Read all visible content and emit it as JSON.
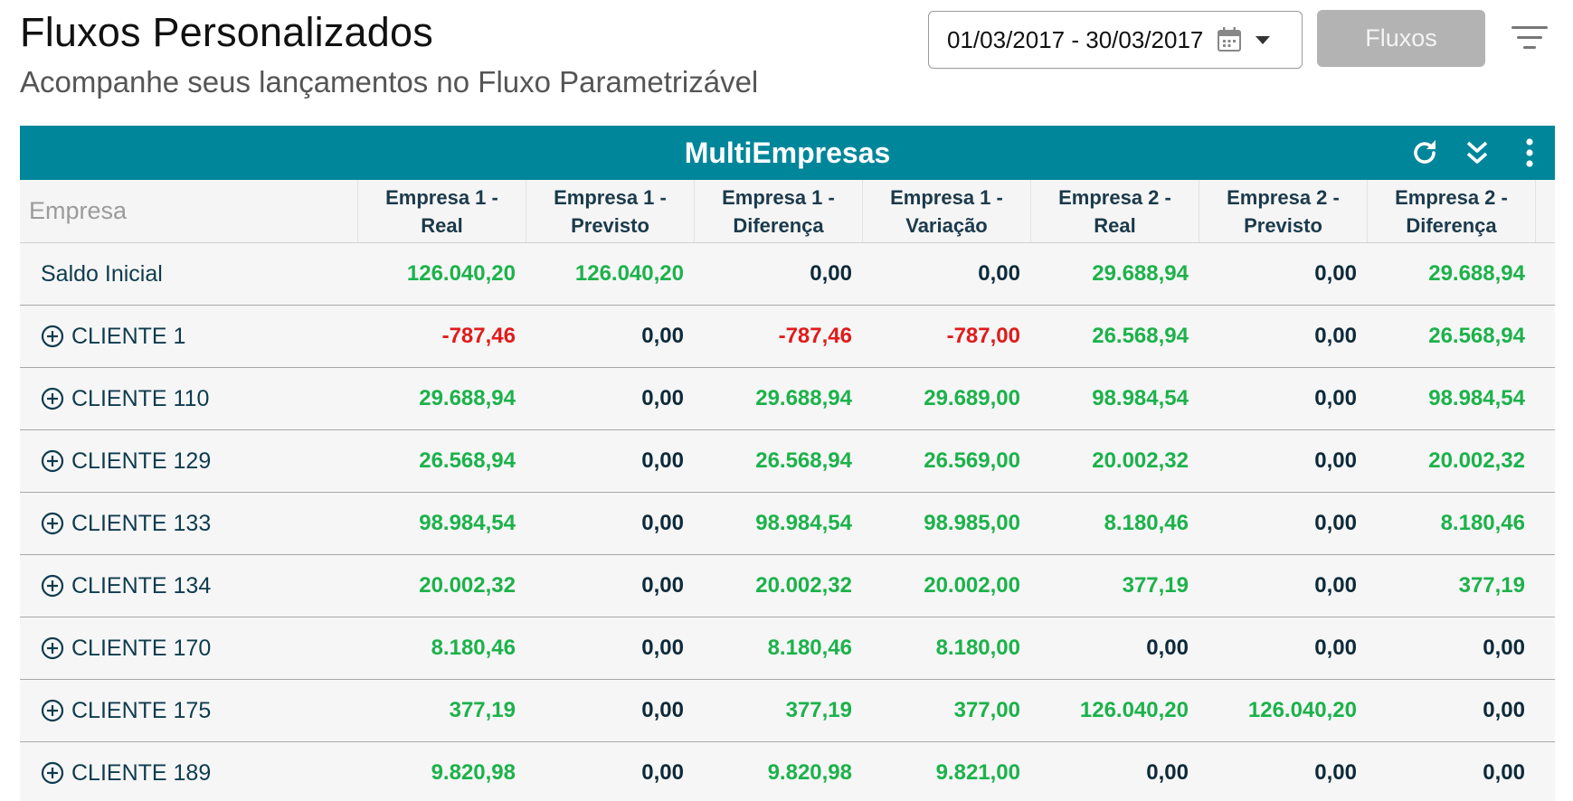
{
  "header": {
    "title": "Fluxos Personalizados",
    "subtitle": "Acompanhe seus lançamentos no Fluxo Parametrizável",
    "date_range": "01/03/2017 - 30/03/2017",
    "fluxos_button": "Fluxos"
  },
  "panel": {
    "title": "MultiEmpresas",
    "actions": [
      "refresh-icon",
      "double-chevron-down-icon",
      "more-vertical-icon"
    ],
    "accent_color": "#00869a"
  },
  "table": {
    "columns": [
      "Empresa",
      "Empresa 1 - Real",
      "Empresa 1 - Previsto",
      "Empresa 1 - Diferença",
      "Empresa 1 - Variação",
      "Empresa 2 - Real",
      "Empresa 2 - Previsto",
      "Empresa 2 - Diferença"
    ],
    "rows": [
      {
        "label": "Saldo Inicial",
        "expandable": false,
        "values": [
          "126.040,20",
          "126.040,20",
          "0,00",
          "0,00",
          "29.688,94",
          "0,00",
          "29.688,94"
        ]
      },
      {
        "label": "CLIENTE 1",
        "expandable": true,
        "values": [
          "-787,46",
          "0,00",
          "-787,46",
          "-787,00",
          "26.568,94",
          "0,00",
          "26.568,94"
        ]
      },
      {
        "label": "CLIENTE 110",
        "expandable": true,
        "values": [
          "29.688,94",
          "0,00",
          "29.688,94",
          "29.689,00",
          "98.984,54",
          "0,00",
          "98.984,54"
        ]
      },
      {
        "label": "CLIENTE 129",
        "expandable": true,
        "values": [
          "26.568,94",
          "0,00",
          "26.568,94",
          "26.569,00",
          "20.002,32",
          "0,00",
          "20.002,32"
        ]
      },
      {
        "label": "CLIENTE 133",
        "expandable": true,
        "values": [
          "98.984,54",
          "0,00",
          "98.984,54",
          "98.985,00",
          "8.180,46",
          "0,00",
          "8.180,46"
        ]
      },
      {
        "label": "CLIENTE 134",
        "expandable": true,
        "values": [
          "20.002,32",
          "0,00",
          "20.002,32",
          "20.002,00",
          "377,19",
          "0,00",
          "377,19"
        ]
      },
      {
        "label": "CLIENTE 170",
        "expandable": true,
        "values": [
          "8.180,46",
          "0,00",
          "8.180,46",
          "8.180,00",
          "0,00",
          "0,00",
          "0,00"
        ]
      },
      {
        "label": "CLIENTE 175",
        "expandable": true,
        "values": [
          "377,19",
          "0,00",
          "377,19",
          "377,00",
          "126.040,20",
          "126.040,20",
          "0,00"
        ]
      },
      {
        "label": "CLIENTE 189",
        "expandable": true,
        "values": [
          "9.820,98",
          "0,00",
          "9.820,98",
          "9.821,00",
          "0,00",
          "0,00",
          "0,00"
        ]
      }
    ],
    "colors": {
      "positive": "#1cb24b",
      "negative": "#e01b1b",
      "zero": "#0e2a3a"
    }
  }
}
